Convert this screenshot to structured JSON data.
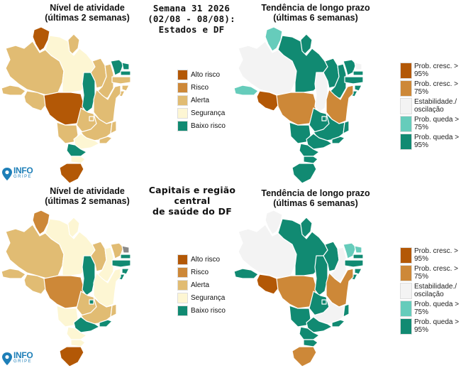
{
  "colors": {
    "alto_risco": "#b35806",
    "risco": "#cd8838",
    "alerta": "#e1bc73",
    "seguranca": "#fdf6d3",
    "baixo_risco": "#118a72",
    "prob_cresc_95": "#b35806",
    "prob_cresc_75": "#cd8838",
    "estabilidade": "#f3f3f3",
    "prob_queda_75": "#66ccbb",
    "prob_queda_95": "#118a72"
  },
  "top": {
    "center_title": [
      "Semana 31 2026",
      "(02/08 - 08/08):",
      "Estados e DF"
    ],
    "activity_title": [
      "Nível de atividade",
      "(últimas 2 semanas)"
    ],
    "trend_title": [
      "Tendência de longo prazo",
      "(últimas 6 semanas)"
    ]
  },
  "bottom": {
    "center_title": [
      "Capitais e região central",
      "de saúde do DF"
    ],
    "activity_title": [
      "Nível de atividade",
      "(últimas 2 semanas)"
    ],
    "trend_title": [
      "Tendência de longo prazo",
      "(últimas 6 semanas)"
    ]
  },
  "activity_legend": [
    {
      "label": "Alto risco",
      "color": "#b35806"
    },
    {
      "label": "Risco",
      "color": "#cd8838"
    },
    {
      "label": "Alerta",
      "color": "#e1bc73"
    },
    {
      "label": "Segurança",
      "color": "#fdf6d3"
    },
    {
      "label": "Baixo risco",
      "color": "#118a72"
    }
  ],
  "trend_legend": [
    {
      "label": "Prob. cresc. > 95%",
      "color": "#b35806"
    },
    {
      "label": "Prob. cresc. > 75%",
      "color": "#cd8838"
    },
    {
      "label": "Estabilidade./ oscilação",
      "color": "#f3f3f3"
    },
    {
      "label": "Prob. queda > 75%",
      "color": "#66ccbb"
    },
    {
      "label": "Prob. queda > 95%",
      "color": "#118a72"
    }
  ],
  "logo": {
    "line1": "INFO",
    "line2": "GRIPE"
  },
  "maps": {
    "top_activity": {
      "RR": "#b35806",
      "AP": "#e1bc73",
      "AM": "#e1bc73",
      "PA": "#fdf6d3",
      "AC": "#e1bc73",
      "RO": "#e1bc73",
      "MT": "#b35806",
      "TO": "#118a72",
      "MA": "#e1bc73",
      "PI": "#e1bc73",
      "CE": "#118a72",
      "RN": "#118a72",
      "PB": "#118a72",
      "PE": "#e1bc73",
      "AL": "#e1bc73",
      "SE": "#e1bc73",
      "BA": "#e1bc73",
      "GO": "#e1bc73",
      "DF": "#e1bc73",
      "MS": "#e1bc73",
      "MG": "#e1bc73",
      "ES": "#e1bc73",
      "RJ": "#e1bc73",
      "SP": "#fdf6d3",
      "PR": "#118a72",
      "SC": "#fdf6d3",
      "RS": "#b35806"
    },
    "top_trend": {
      "RR": "#66ccbb",
      "AP": "#118a72",
      "AM": "#f3f3f3",
      "PA": "#118a72",
      "AC": "#66ccbb",
      "RO": "#b35806",
      "MT": "#cd8838",
      "TO": "#f3f3f3",
      "MA": "#118a72",
      "PI": "#118a72",
      "CE": "#118a72",
      "RN": "#f3f3f3",
      "PB": "#118a72",
      "PE": "#118a72",
      "AL": "#118a72",
      "SE": "#118a72",
      "BA": "#cd8838",
      "GO": "#118a72",
      "DF": "#118a72",
      "MS": "#118a72",
      "MG": "#118a72",
      "ES": "#118a72",
      "RJ": "#118a72",
      "SP": "#118a72",
      "PR": "#118a72",
      "SC": "#118a72",
      "RS": "#118a72"
    },
    "bottom_activity": {
      "RR": "#cd8838",
      "AP": "#fdf6d3",
      "AM": "#e1bc73",
      "PA": "#fdf6d3",
      "AC": "#e1bc73",
      "RO": "#e1bc73",
      "MT": "#cd8838",
      "TO": "#118a72",
      "MA": "#e1bc73",
      "PI": "#fdf6d3",
      "CE": "#e1bc73",
      "RN": "#888888",
      "PB": "#118a72",
      "PE": "#118a72",
      "AL": "#118a72",
      "SE": "#118a72",
      "BA": "#fdf6d3",
      "GO": "#e1bc73",
      "DF": "#118a72",
      "MS": "#fdf6d3",
      "MG": "#e1bc73",
      "ES": "#e1bc73",
      "RJ": "#118a72",
      "SP": "#118a72",
      "PR": "#fdf6d3",
      "SC": "#fdf6d3",
      "RS": "#b35806"
    },
    "bottom_trend": {
      "RR": "#f3f3f3",
      "AP": "#118a72",
      "AM": "#f3f3f3",
      "PA": "#118a72",
      "AC": "#118a72",
      "RO": "#b35806",
      "MT": "#cd8838",
      "TO": "#118a72",
      "MA": "#118a72",
      "PI": "#f3f3f3",
      "CE": "#66ccbb",
      "RN": "#66ccbb",
      "PB": "#118a72",
      "PE": "#118a72",
      "AL": "#118a72",
      "SE": "#118a72",
      "BA": "#cd8838",
      "GO": "#118a72",
      "DF": "#118a72",
      "MS": "#118a72",
      "MG": "#f3f3f3",
      "ES": "#118a72",
      "RJ": "#118a72",
      "SP": "#118a72",
      "PR": "#118a72",
      "SC": "#118a72",
      "RS": "#cd8838"
    }
  }
}
